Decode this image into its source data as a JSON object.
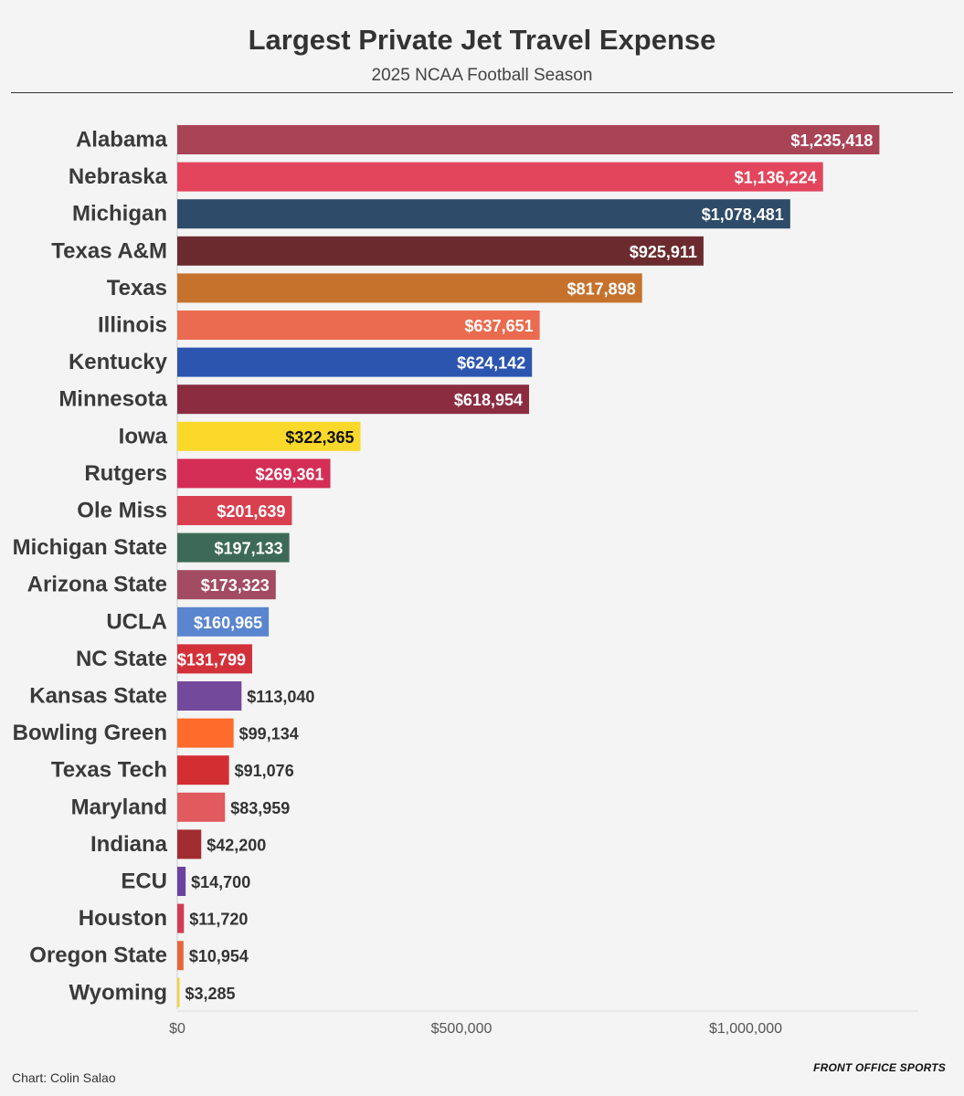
{
  "title": "Largest Private Jet Travel Expense",
  "subtitle": "2025 NCAA Football Season",
  "source": "Chart: Colin Salao",
  "brand": "FRONT OFFICE SPORTS",
  "chart_data": {
    "type": "bar",
    "orientation": "horizontal",
    "title": "Largest Private Jet Travel Expense",
    "subtitle": "2025 NCAA Football Season",
    "xlabel": "",
    "ylabel": "",
    "xlim": [
      0,
      1300000
    ],
    "x_ticks": [
      0,
      500000,
      1000000
    ],
    "x_tick_labels": [
      "$0",
      "$500,000",
      "$1,000,000"
    ],
    "categories": [
      "Alabama",
      "Nebraska",
      "Michigan",
      "Texas A&M",
      "Texas",
      "Illinois",
      "Kentucky",
      "Minnesota",
      "Iowa",
      "Rutgers",
      "Ole Miss",
      "Michigan State",
      "Arizona State",
      "UCLA",
      "NC State",
      "Kansas State",
      "Bowling Green",
      "Texas Tech",
      "Maryland",
      "Indiana",
      "ECU",
      "Houston",
      "Oregon State",
      "Wyoming"
    ],
    "values": [
      1235418,
      1136224,
      1078481,
      925911,
      817898,
      637651,
      624142,
      618954,
      322365,
      269361,
      201639,
      197133,
      173323,
      160965,
      131799,
      113040,
      99134,
      91076,
      83959,
      42200,
      14700,
      11720,
      10954,
      3285
    ],
    "value_labels": [
      "$1,235,418",
      "$1,136,224",
      "$1,078,481",
      "$925,911",
      "$817,898",
      "$637,651",
      "$624,142",
      "$618,954",
      "$322,365",
      "$269,361",
      "$201,639",
      "$197,133",
      "$173,323",
      "$160,965",
      "$131,799",
      "$113,040",
      "$99,134",
      "$91,076",
      "$83,959",
      "$42,200",
      "$14,700",
      "$11,720",
      "$10,954",
      "$3,285"
    ],
    "colors": [
      "#a94457",
      "#e3455c",
      "#2e4b69",
      "#6b2b2e",
      "#c6722c",
      "#ea6b4f",
      "#2c55b0",
      "#8b2c41",
      "#fad92b",
      "#d42e56",
      "#d9404f",
      "#3d6a58",
      "#a24b62",
      "#5a85cf",
      "#d3313a",
      "#73499b",
      "#ff6b2b",
      "#d32f33",
      "#e05a5e",
      "#a22c2f",
      "#6b42a0",
      "#d13c55",
      "#e6663a",
      "#f5d23a"
    ],
    "label_colors": [
      "#ffffff",
      "#ffffff",
      "#ffffff",
      "#ffffff",
      "#ffffff",
      "#ffffff",
      "#ffffff",
      "#ffffff",
      "#111111",
      "#ffffff",
      "#ffffff",
      "#ffffff",
      "#ffffff",
      "#ffffff",
      "#ffffff",
      "#333333",
      "#333333",
      "#333333",
      "#333333",
      "#333333",
      "#333333",
      "#333333",
      "#333333",
      "#333333"
    ],
    "label_inside": [
      true,
      true,
      true,
      true,
      true,
      true,
      true,
      true,
      true,
      true,
      true,
      true,
      true,
      true,
      true,
      false,
      false,
      false,
      false,
      false,
      false,
      false,
      false,
      false
    ]
  }
}
